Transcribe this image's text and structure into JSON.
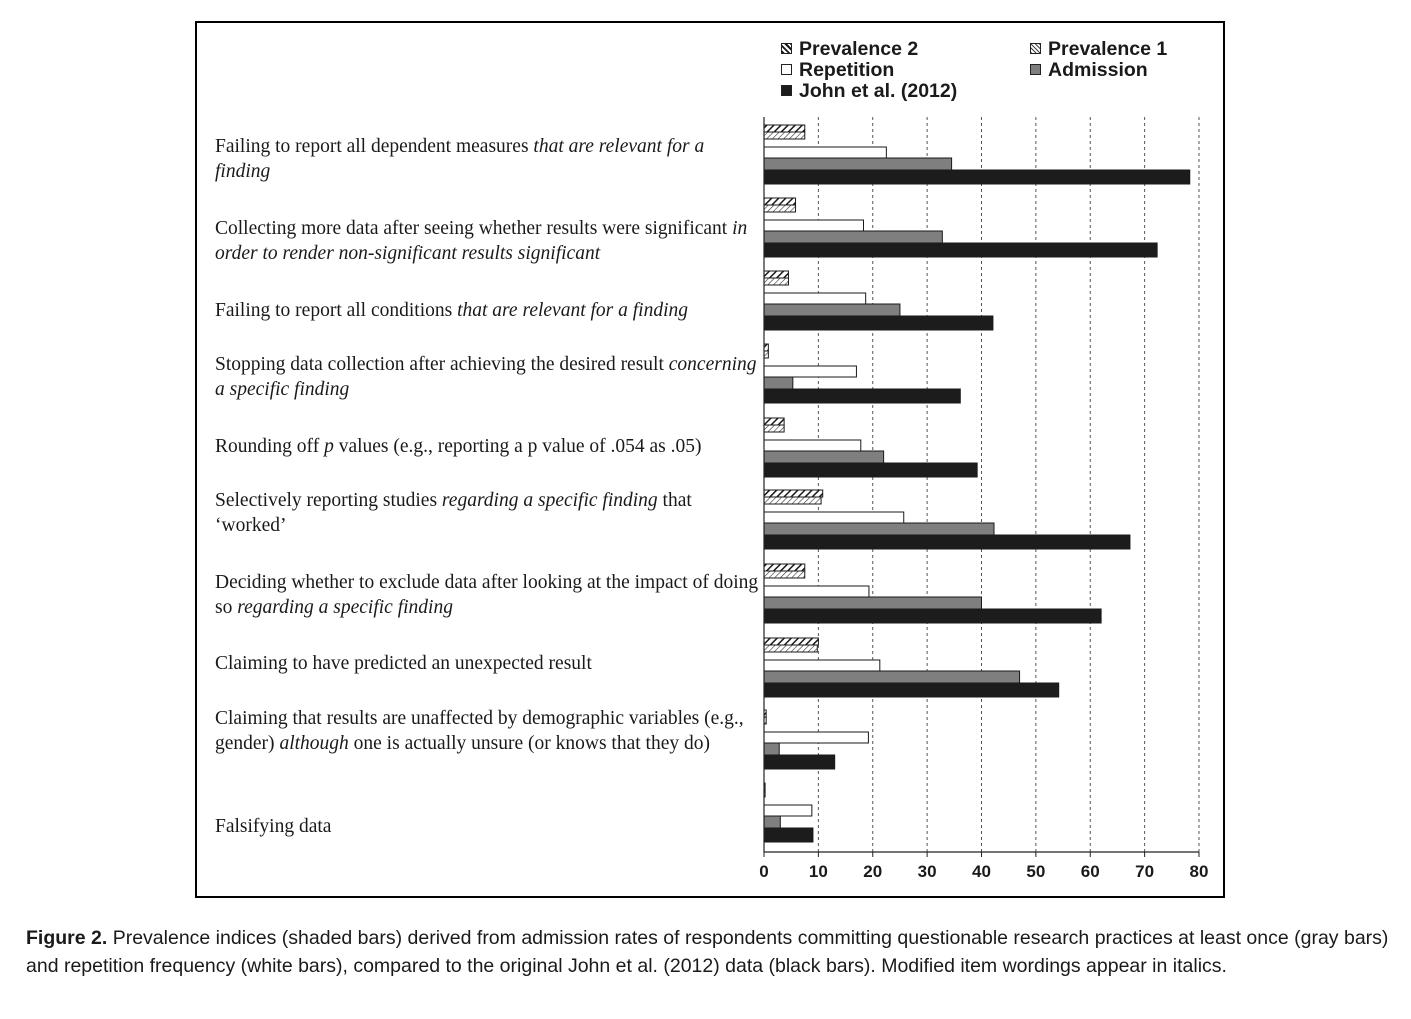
{
  "chart_data": {
    "type": "bar",
    "orientation": "horizontal",
    "categories": [
      {
        "parts": [
          {
            "t": "Failing to report all dependent measures ",
            "i": false
          },
          {
            "t": "that are relevant for a finding",
            "i": true
          }
        ]
      },
      {
        "parts": [
          {
            "t": "Collecting more data after seeing whether results were significant ",
            "i": false
          },
          {
            "t": "in order to render non-significant results significant",
            "i": true
          }
        ]
      },
      {
        "parts": [
          {
            "t": "Failing to report all conditions ",
            "i": false
          },
          {
            "t": "that are relevant for a finding",
            "i": true
          }
        ]
      },
      {
        "parts": [
          {
            "t": "Stopping data collection after achieving the desired result ",
            "i": false
          },
          {
            "t": "concerning a specific finding",
            "i": true
          }
        ]
      },
      {
        "parts": [
          {
            "t": "Rounding off ",
            "i": false
          },
          {
            "t": "p",
            "i": true
          },
          {
            "t": " values (e.g., reporting a p value of .054 as .05)",
            "i": false
          }
        ]
      },
      {
        "parts": [
          {
            "t": "Selectively reporting studies ",
            "i": false
          },
          {
            "t": "regarding a specific finding",
            "i": true
          },
          {
            "t": " that ‘worked’",
            "i": false
          }
        ]
      },
      {
        "parts": [
          {
            "t": "Deciding whether to exclude data after looking at the impact of doing so ",
            "i": false
          },
          {
            "t": "regarding a specific finding",
            "i": true
          }
        ]
      },
      {
        "parts": [
          {
            "t": "Claiming to have predicted an unexpected result",
            "i": false
          }
        ]
      },
      {
        "parts": [
          {
            "t": "Claiming that results are unaffected by demographic variables (e.g., gender) ",
            "i": false
          },
          {
            "t": "although",
            "i": true
          },
          {
            "t": " one is actually unsure (or knows that they do)",
            "i": false
          }
        ]
      },
      {
        "parts": [
          {
            "t": "Falsifying data",
            "i": false
          }
        ]
      }
    ],
    "series": [
      {
        "name": "Prevalence 2",
        "fill": "hatch-dense",
        "values": [
          7.5,
          5.8,
          4.5,
          0.8,
          3.7,
          10.8,
          7.5,
          10,
          0.4,
          0.2
        ]
      },
      {
        "name": "Prevalence 1",
        "fill": "hatch-light",
        "values": [
          7.5,
          5.8,
          4.5,
          0.8,
          3.7,
          10.5,
          7.5,
          9.8,
          0.4,
          0.2
        ]
      },
      {
        "name": "Repetition",
        "fill": "#ffffff",
        "values": [
          22.5,
          18.3,
          18.7,
          17,
          17.8,
          25.7,
          19.3,
          21.3,
          19.2,
          8.8
        ]
      },
      {
        "name": "Admission",
        "fill": "#7f7f7f",
        "values": [
          34.5,
          32.8,
          25,
          5.3,
          22,
          42.3,
          40,
          47,
          2.8,
          3
        ]
      },
      {
        "name": "John et al. (2012)",
        "fill": "#1c1c1c",
        "values": [
          78.3,
          72.3,
          42.1,
          36.1,
          39.2,
          67.3,
          62,
          54.2,
          13,
          9
        ]
      }
    ],
    "xlim": [
      0,
      80
    ],
    "xticks": [
      0,
      10,
      20,
      30,
      40,
      50,
      60,
      70,
      80
    ],
    "grid": "vertical dashed",
    "legend_placement": "top",
    "legend": [
      {
        "name": "Prevalence 2",
        "swatch": "hatch-dense"
      },
      {
        "name": "Prevalence 1",
        "swatch": "hatch-light"
      },
      {
        "name": "Repetition",
        "swatch": "#ffffff"
      },
      {
        "name": "Admission",
        "swatch": "#7f7f7f"
      },
      {
        "name": "John et al. (2012)",
        "swatch": "#1c1c1c"
      }
    ]
  },
  "caption": {
    "label": "Figure 2.",
    "text": " Prevalence indices (shaded bars) derived from admission rates of respondents committing questionable research practices at least once (gray bars) and repetition frequency (white bars), compared to the original John et al. (2012) data (black bars). Modified item wordings appear in italics."
  }
}
